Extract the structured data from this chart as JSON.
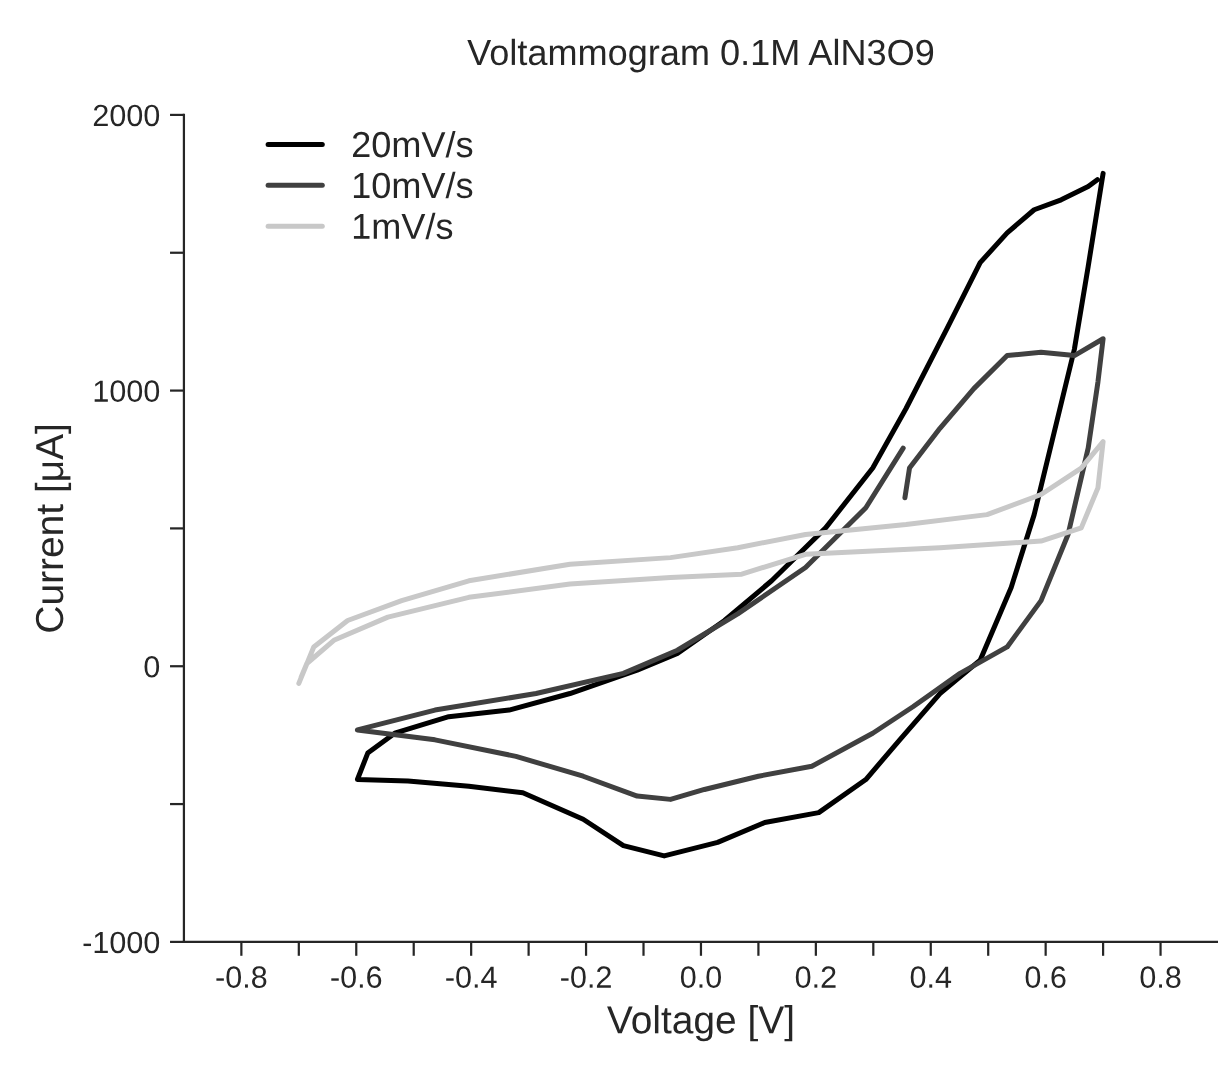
{
  "chart_data": {
    "type": "line",
    "title": "Voltammogram 0.1M AlN3O9",
    "xlabel": "Voltage [V]",
    "ylabel": "Current [μA]",
    "xlim": [
      -0.9,
      0.9
    ],
    "ylim": [
      -1000,
      2000
    ],
    "xticks": [
      {
        "value": -0.8,
        "label": "-0.8"
      },
      {
        "value": -0.7,
        "label": null
      },
      {
        "value": -0.6,
        "label": "-0.6"
      },
      {
        "value": -0.5,
        "label": null
      },
      {
        "value": -0.4,
        "label": "-0.4"
      },
      {
        "value": -0.3,
        "label": null
      },
      {
        "value": -0.2,
        "label": "-0.2"
      },
      {
        "value": -0.1,
        "label": null
      },
      {
        "value": 0.0,
        "label": "0.0"
      },
      {
        "value": 0.1,
        "label": null
      },
      {
        "value": 0.2,
        "label": "0.2"
      },
      {
        "value": 0.3,
        "label": null
      },
      {
        "value": 0.4,
        "label": "0.4"
      },
      {
        "value": 0.5,
        "label": null
      },
      {
        "value": 0.6,
        "label": "0.6"
      },
      {
        "value": 0.7,
        "label": null
      },
      {
        "value": 0.8,
        "label": "0.8"
      }
    ],
    "yticks": [
      -1000,
      {
        "value": -500,
        "label": null
      },
      0,
      {
        "value": 500,
        "label": null
      },
      1000,
      {
        "value": 1500,
        "label": null
      },
      2000
    ],
    "grid": false,
    "legend": "top left",
    "marker": "none",
    "line_style": "solid",
    "series": [
      {
        "name": "20mV/s",
        "color": "#000000",
        "x": [
          0.7,
          0.674,
          0.65,
          0.58,
          0.54,
          0.486,
          0.416,
          0.346,
          0.287,
          0.205,
          0.111,
          0.029,
          -0.064,
          -0.135,
          -0.205,
          -0.31,
          -0.404,
          -0.51,
          -0.598,
          -0.58,
          -0.533,
          -0.439,
          -0.334,
          -0.228,
          -0.111,
          -0.041,
          0.041,
          0.123,
          0.217,
          0.299,
          0.357,
          0.428,
          0.486,
          0.533,
          0.58,
          0.627,
          0.674,
          0.69
        ],
        "values": [
          1788,
          1450,
          1150,
          550,
          286,
          22,
          -99,
          -267,
          -411,
          -531,
          -567,
          -639,
          -688,
          -651,
          -555,
          -459,
          -435,
          -416,
          -411,
          -315,
          -243,
          -183,
          -159,
          -99,
          -14,
          46,
          166,
          310,
          502,
          719,
          935,
          1224,
          1464,
          1572,
          1656,
          1692,
          1740,
          1765
        ]
      },
      {
        "name": "10mV/s",
        "color": "#404040",
        "x": [
          0.355,
          0.363,
          0.416,
          0.475,
          0.533,
          0.592,
          0.65,
          0.7,
          0.691,
          0.674,
          0.639,
          0.592,
          0.533,
          0.451,
          0.369,
          0.299,
          0.193,
          0.1,
          0.006,
          -0.053,
          -0.111,
          -0.205,
          -0.322,
          -0.463,
          -0.598,
          -0.463,
          -0.287,
          -0.135,
          -0.041,
          0.064,
          0.182,
          0.287,
          0.352
        ],
        "values": [
          611,
          719,
          863,
          1007,
          1127,
          1139,
          1127,
          1188,
          1031,
          791,
          478,
          238,
          70,
          -26,
          -147,
          -243,
          -363,
          -399,
          -447,
          -483,
          -471,
          -399,
          -327,
          -267,
          -231,
          -159,
          -99,
          -26,
          58,
          190,
          358,
          575,
          791
        ]
      },
      {
        "name": "1mV/s",
        "color": "#c8c8c8",
        "x": [
          -0.7,
          -0.674,
          -0.615,
          -0.521,
          -0.404,
          -0.228,
          -0.053,
          0.064,
          0.182,
          0.357,
          0.498,
          0.592,
          0.662,
          0.7,
          0.691,
          0.662,
          0.592,
          0.416,
          0.182,
          0.071,
          -0.053,
          -0.228,
          -0.404,
          -0.545,
          -0.639,
          -0.686,
          -0.696
        ],
        "values": [
          -62,
          70,
          166,
          238,
          310,
          370,
          394,
          430,
          478,
          514,
          550,
          623,
          719,
          815,
          647,
          502,
          454,
          430,
          406,
          334,
          322,
          298,
          250,
          178,
          94,
          10,
          -40
        ]
      }
    ]
  }
}
